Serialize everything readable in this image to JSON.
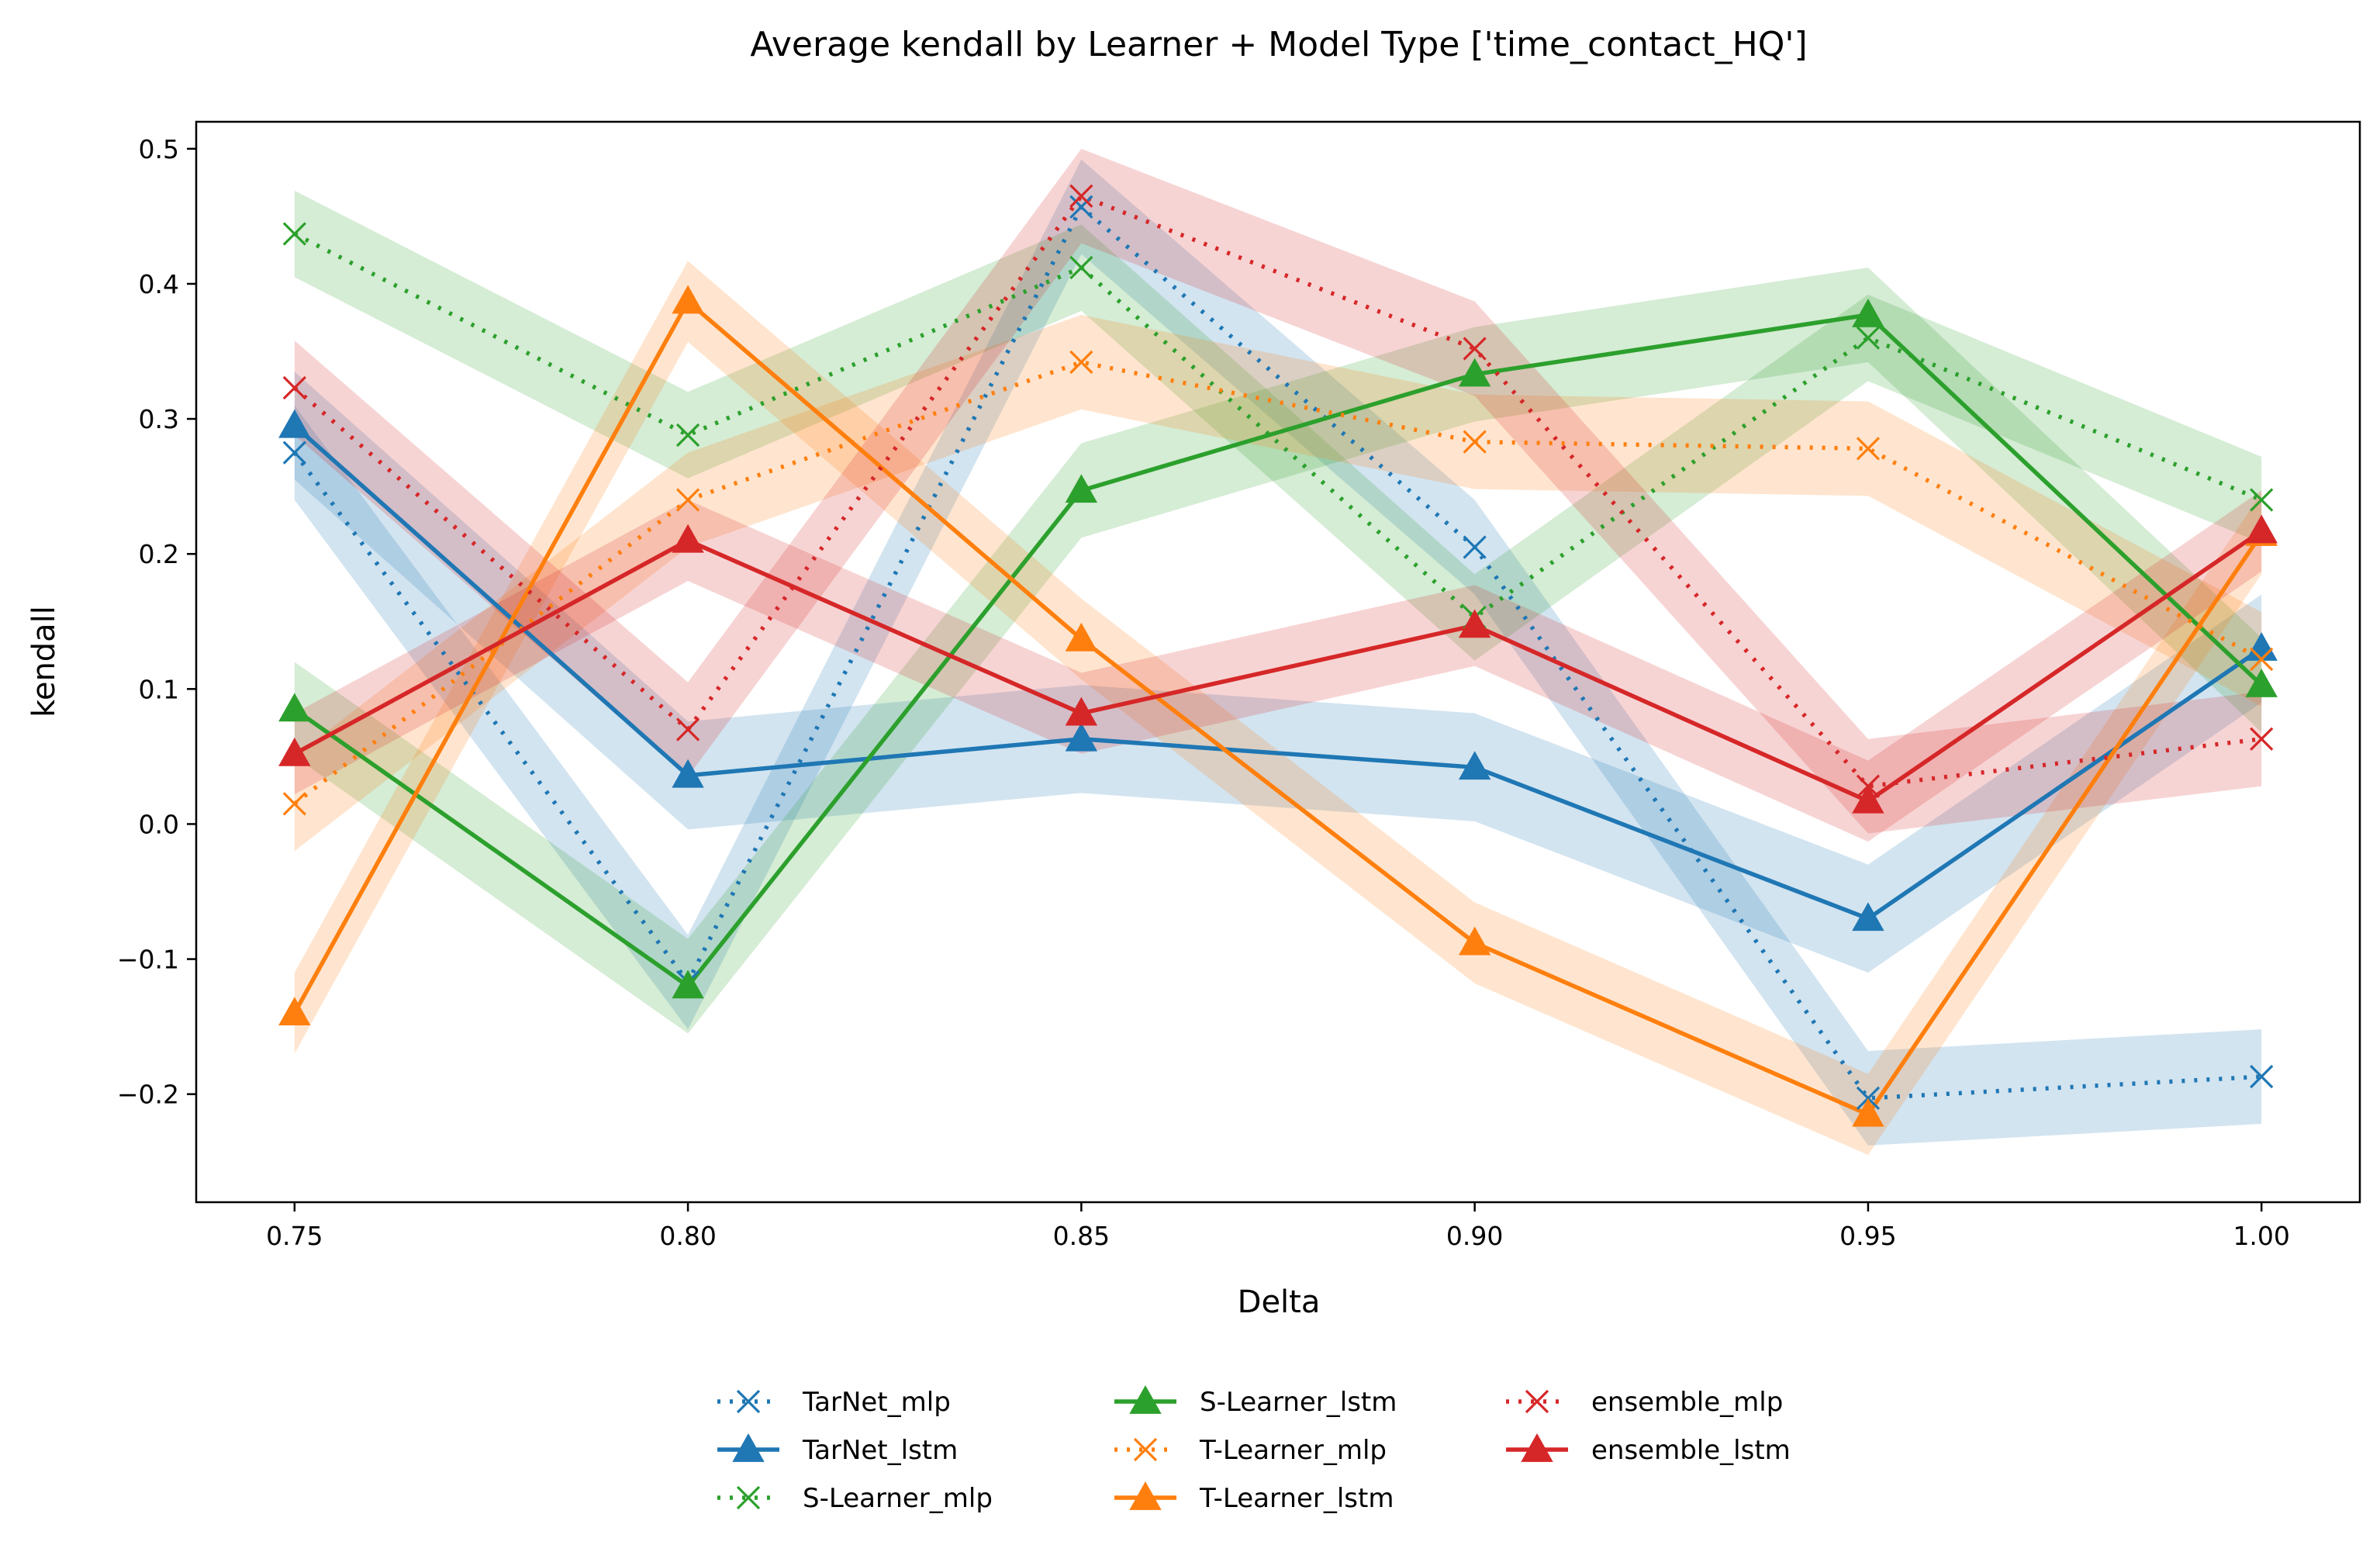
{
  "chart_data": {
    "type": "line",
    "title": "Average kendall by Learner + Model Type ['time_contact_HQ']",
    "xlabel": "Delta",
    "ylabel": "kendall",
    "xlim": [
      0.7375,
      1.0125
    ],
    "ylim": [
      -0.28,
      0.52
    ],
    "x": [
      0.75,
      0.8,
      0.85,
      0.9,
      0.95,
      1.0
    ],
    "xticks": [
      "0.75",
      "0.80",
      "0.85",
      "0.90",
      "0.95",
      "1.00"
    ],
    "yticks": [
      "−0.2",
      "−0.1",
      "0.0",
      "0.1",
      "0.2",
      "0.3",
      "0.4",
      "0.5"
    ],
    "ytick_values": [
      -0.2,
      -0.1,
      0.0,
      0.1,
      0.2,
      0.3,
      0.4,
      0.5
    ],
    "grid": false,
    "legend_position": "bottom-center",
    "series": [
      {
        "name": "TarNet_mlp",
        "color": "#1f77b4",
        "style": "dotted",
        "marker": "x",
        "values": [
          0.275,
          -0.117,
          0.457,
          0.205,
          -0.203,
          -0.187
        ],
        "band": 0.035
      },
      {
        "name": "TarNet_lstm",
        "color": "#1f77b4",
        "style": "solid",
        "marker": "triangle",
        "values": [
          0.295,
          0.036,
          0.063,
          0.042,
          -0.07,
          0.13
        ],
        "band": 0.04
      },
      {
        "name": "S-Learner_mlp",
        "color": "#2ca02c",
        "style": "dotted",
        "marker": "x",
        "values": [
          0.437,
          0.288,
          0.412,
          0.153,
          0.36,
          0.24
        ],
        "band": 0.032
      },
      {
        "name": "S-Learner_lstm",
        "color": "#2ca02c",
        "style": "solid",
        "marker": "triangle",
        "values": [
          0.085,
          -0.12,
          0.247,
          0.333,
          0.377,
          0.103
        ],
        "band": 0.035
      },
      {
        "name": "T-Learner_mlp",
        "color": "#ff7f0e",
        "style": "dotted",
        "marker": "x",
        "values": [
          0.015,
          0.24,
          0.342,
          0.283,
          0.278,
          0.122
        ],
        "band": 0.035
      },
      {
        "name": "T-Learner_lstm",
        "color": "#ff7f0e",
        "style": "solid",
        "marker": "triangle",
        "values": [
          -0.14,
          0.387,
          0.137,
          -0.088,
          -0.215,
          0.215
        ],
        "band": 0.03
      },
      {
        "name": "ensemble_mlp",
        "color": "#d62728",
        "style": "dotted",
        "marker": "x",
        "values": [
          0.323,
          0.07,
          0.465,
          0.352,
          0.028,
          0.063
        ],
        "band": 0.035
      },
      {
        "name": "ensemble_lstm",
        "color": "#d62728",
        "style": "solid",
        "marker": "triangle",
        "values": [
          0.052,
          0.21,
          0.082,
          0.147,
          0.017,
          0.217
        ],
        "band": 0.03
      }
    ]
  }
}
